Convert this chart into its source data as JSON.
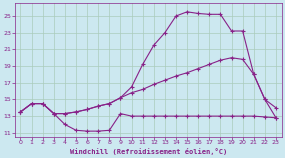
{
  "background_color": "#cce8f0",
  "line_color": "#882288",
  "grid_color": "#aaccbb",
  "xlabel": "Windchill (Refroidissement éolien,°C)",
  "xlim": [
    -0.5,
    23.5
  ],
  "ylim": [
    10.5,
    26.5
  ],
  "yticks": [
    11,
    13,
    15,
    17,
    19,
    21,
    23,
    25
  ],
  "xticks": [
    0,
    1,
    2,
    3,
    4,
    5,
    6,
    7,
    8,
    9,
    10,
    11,
    12,
    13,
    14,
    15,
    16,
    17,
    18,
    19,
    20,
    21,
    22,
    23
  ],
  "series1_x": [
    0,
    1,
    2,
    3,
    4,
    5,
    6,
    7,
    8,
    9,
    10,
    11,
    12,
    13,
    14,
    15,
    16,
    17,
    18,
    19,
    20,
    21,
    22,
    23
  ],
  "series1_y": [
    13.5,
    14.5,
    14.5,
    13.3,
    12.0,
    11.3,
    11.2,
    11.2,
    11.3,
    13.3,
    13.0,
    13.0,
    13.0,
    13.0,
    13.0,
    13.0,
    13.0,
    13.0,
    13.0,
    13.0,
    13.0,
    13.0,
    12.9,
    12.8
  ],
  "series2_x": [
    0,
    1,
    2,
    3,
    4,
    5,
    6,
    7,
    8,
    9,
    10,
    11,
    12,
    13,
    14,
    15,
    16,
    17,
    18,
    19,
    20,
    21,
    22,
    23
  ],
  "series2_y": [
    13.5,
    14.5,
    14.5,
    13.3,
    13.3,
    13.5,
    13.8,
    14.2,
    14.5,
    15.2,
    15.8,
    16.2,
    16.8,
    17.3,
    17.8,
    18.2,
    18.7,
    19.2,
    19.7,
    20.0,
    19.8,
    18.0,
    15.0,
    14.0
  ],
  "series3_x": [
    0,
    1,
    2,
    3,
    4,
    5,
    6,
    7,
    8,
    9,
    10,
    11,
    12,
    13,
    14,
    15,
    16,
    17,
    18,
    19,
    20,
    21,
    22,
    23
  ],
  "series3_y": [
    13.5,
    14.5,
    14.5,
    13.3,
    13.3,
    13.5,
    13.8,
    14.2,
    14.5,
    15.2,
    16.5,
    19.2,
    21.5,
    23.0,
    25.0,
    25.5,
    25.3,
    25.2,
    25.2,
    23.2,
    23.2,
    18.0,
    15.0,
    12.8
  ],
  "marker": "+"
}
